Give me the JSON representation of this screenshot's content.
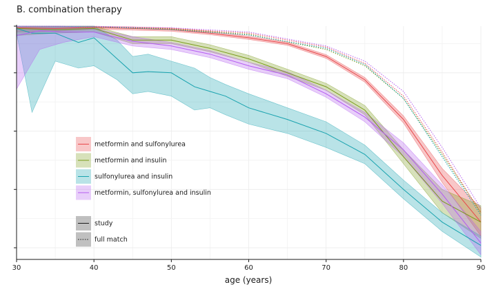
{
  "chart_data": {
    "type": "line",
    "title": "B. combination therapy",
    "xlabel": "age (years)",
    "ylabel": "",
    "xlim": [
      30,
      90
    ],
    "ylim": [
      0,
      1
    ],
    "xticks": [
      30,
      40,
      50,
      60,
      70,
      80,
      90
    ],
    "yticks": [
      0.05,
      0.3,
      0.55,
      0.8,
      1.05
    ],
    "ytick_labels_visible": false,
    "grid": true,
    "legend": {
      "placement": "lower-left",
      "treatment_entries": [
        {
          "name": "metformin and sulfonylurea",
          "color": "#E8464A"
        },
        {
          "name": "metformin and insulin",
          "color": "#7A9A1A"
        },
        {
          "name": "sulfonylurea and insulin",
          "color": "#17A2AE"
        },
        {
          "name": "metformin, sulfonylurea and insulin",
          "color": "#B35CF0"
        }
      ],
      "linetype_entries": [
        {
          "name": "study",
          "style": "solid"
        },
        {
          "name": "full match",
          "style": "dotted"
        }
      ]
    },
    "series": [
      {
        "name": "metformin and sulfonylurea",
        "group": "study",
        "color": "#E8464A",
        "x": [
          30,
          35,
          40,
          45,
          50,
          55,
          60,
          65,
          70,
          75,
          80,
          85,
          90
        ],
        "y": [
          0.993,
          0.99,
          0.995,
          0.99,
          0.985,
          0.97,
          0.95,
          0.925,
          0.87,
          0.77,
          0.6,
          0.36,
          0.16
        ],
        "lower": [
          0.975,
          0.978,
          0.987,
          0.983,
          0.978,
          0.963,
          0.943,
          0.918,
          0.862,
          0.76,
          0.585,
          0.33,
          0.1
        ],
        "upper": [
          1.0,
          1.0,
          1.0,
          0.997,
          0.992,
          0.977,
          0.957,
          0.932,
          0.878,
          0.78,
          0.615,
          0.39,
          0.22
        ]
      },
      {
        "name": "metformin and insulin",
        "group": "study",
        "color": "#7A9A1A",
        "x": [
          30,
          35,
          40,
          45,
          50,
          55,
          60,
          65,
          70,
          75,
          80,
          85,
          90
        ],
        "y": [
          0.99,
          0.985,
          0.99,
          0.94,
          0.94,
          0.905,
          0.86,
          0.8,
          0.74,
          0.64,
          0.44,
          0.25,
          0.16
        ],
        "lower": [
          0.96,
          0.97,
          0.975,
          0.925,
          0.925,
          0.89,
          0.845,
          0.785,
          0.725,
          0.62,
          0.41,
          0.2,
          0.09
        ],
        "upper": [
          1.0,
          1.0,
          1.0,
          0.955,
          0.955,
          0.92,
          0.875,
          0.815,
          0.755,
          0.66,
          0.47,
          0.3,
          0.23
        ]
      },
      {
        "name": "sulfonylurea and insulin",
        "group": "study",
        "color": "#17A2AE",
        "x": [
          30,
          32,
          35,
          38,
          40,
          43,
          45,
          47,
          50,
          53,
          55,
          57,
          60,
          65,
          70,
          75,
          80,
          85,
          90
        ],
        "y": [
          0.99,
          0.97,
          0.97,
          0.93,
          0.95,
          0.86,
          0.8,
          0.805,
          0.8,
          0.74,
          0.72,
          0.7,
          0.65,
          0.6,
          0.54,
          0.45,
          0.3,
          0.16,
          0.06
        ],
        "lower": [
          0.97,
          0.63,
          0.85,
          0.82,
          0.83,
          0.77,
          0.71,
          0.72,
          0.7,
          0.64,
          0.65,
          0.62,
          0.58,
          0.54,
          0.48,
          0.41,
          0.26,
          0.12,
          0.01
        ],
        "upper": [
          1.0,
          1.0,
          1.0,
          1.0,
          1.0,
          0.94,
          0.87,
          0.88,
          0.85,
          0.82,
          0.78,
          0.75,
          0.71,
          0.65,
          0.59,
          0.49,
          0.34,
          0.2,
          0.1
        ]
      },
      {
        "name": "metformin, sulfonylurea and insulin",
        "group": "study",
        "color": "#B35CF0",
        "x": [
          30,
          33,
          36,
          40,
          45,
          50,
          55,
          60,
          65,
          70,
          75,
          80,
          85,
          90
        ],
        "y": [
          0.96,
          0.98,
          0.975,
          0.975,
          0.935,
          0.915,
          0.88,
          0.83,
          0.79,
          0.71,
          0.61,
          0.47,
          0.28,
          0.07
        ],
        "lower": [
          0.73,
          0.9,
          0.93,
          0.955,
          0.915,
          0.9,
          0.865,
          0.815,
          0.775,
          0.695,
          0.59,
          0.44,
          0.24,
          0.02
        ],
        "upper": [
          1.0,
          1.0,
          1.0,
          0.99,
          0.955,
          0.93,
          0.895,
          0.845,
          0.805,
          0.725,
          0.63,
          0.5,
          0.32,
          0.12
        ]
      },
      {
        "name": "metformin and sulfonylurea",
        "group": "full match",
        "color": "#E8464A",
        "x": [
          30,
          40,
          50,
          60,
          70,
          75,
          80,
          85,
          90
        ],
        "y": [
          1.0,
          0.998,
          0.99,
          0.97,
          0.91,
          0.84,
          0.7,
          0.46,
          0.2
        ]
      },
      {
        "name": "metformin and insulin",
        "group": "full match",
        "color": "#7A9A1A",
        "x": [
          30,
          40,
          50,
          60,
          70,
          75,
          80,
          85,
          90
        ],
        "y": [
          1.0,
          0.998,
          0.988,
          0.965,
          0.9,
          0.83,
          0.69,
          0.45,
          0.2
        ]
      },
      {
        "name": "sulfonylurea and insulin",
        "group": "full match",
        "color": "#17A2AE",
        "x": [
          30,
          40,
          50,
          60,
          70,
          75,
          80,
          85,
          90
        ],
        "y": [
          1.0,
          0.998,
          0.985,
          0.962,
          0.905,
          0.835,
          0.69,
          0.44,
          0.19
        ]
      },
      {
        "name": "metformin, sulfonylurea and insulin",
        "group": "full match",
        "color": "#B35CF0",
        "x": [
          30,
          40,
          50,
          60,
          70,
          75,
          80,
          85,
          90
        ],
        "y": [
          1.0,
          0.999,
          0.993,
          0.975,
          0.915,
          0.85,
          0.72,
          0.48,
          0.22
        ]
      }
    ]
  }
}
